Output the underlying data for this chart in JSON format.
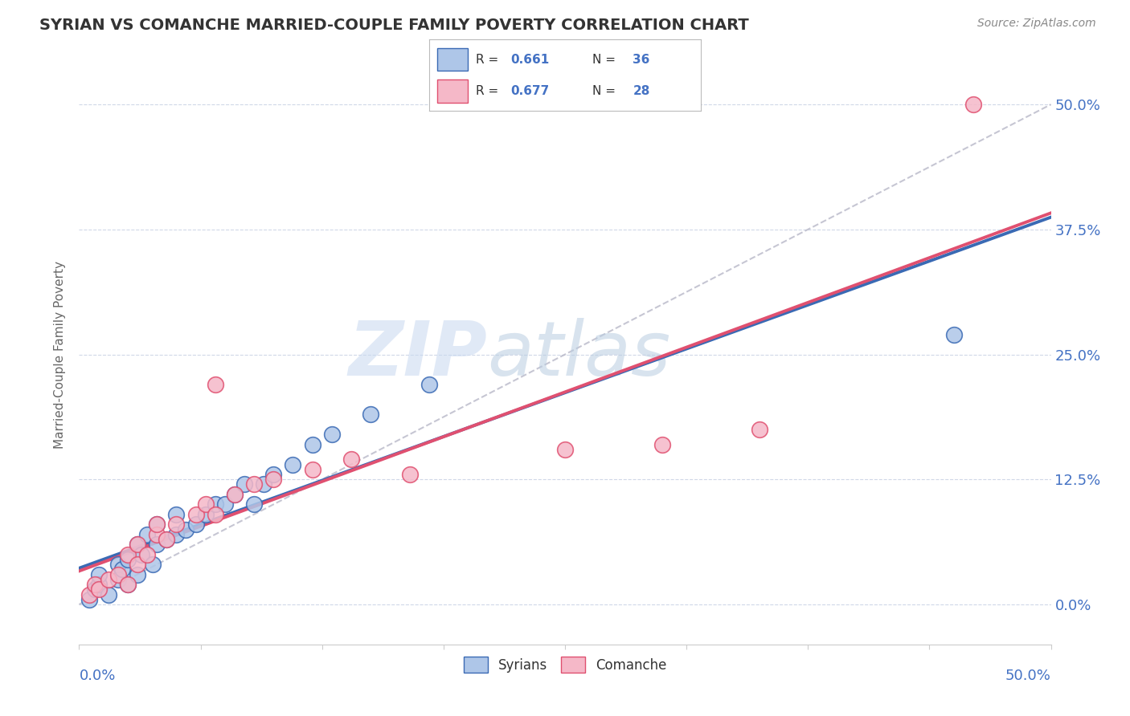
{
  "title": "SYRIAN VS COMANCHE MARRIED-COUPLE FAMILY POVERTY CORRELATION CHART",
  "source": "Source: ZipAtlas.com",
  "ylabel": "Married-Couple Family Poverty",
  "ytick_values": [
    0.0,
    0.125,
    0.25,
    0.375,
    0.5
  ],
  "xmin": 0.0,
  "xmax": 0.5,
  "ymin": -0.04,
  "ymax": 0.54,
  "legend_r1": "0.661",
  "legend_n1": "36",
  "legend_r2": "0.677",
  "legend_n2": "28",
  "legend_label1": "Syrians",
  "legend_label2": "Comanche",
  "syrian_color": "#aec6e8",
  "comanche_color": "#f5b8c8",
  "syrian_line_color": "#3a6ab4",
  "comanche_line_color": "#e05070",
  "ref_line_color": "#b8b8c8",
  "axis_label_color": "#4472c4",
  "r_label_color": "#333333",
  "r_value_color": "#4472c4",
  "background_color": "#ffffff",
  "grid_color": "#d0d8e8",
  "title_color": "#333333",
  "source_color": "#888888",
  "figsize": [
    14.06,
    8.92
  ],
  "dpi": 100,
  "syrian_scatter_x": [
    0.005,
    0.008,
    0.01,
    0.01,
    0.015,
    0.02,
    0.02,
    0.022,
    0.025,
    0.025,
    0.03,
    0.03,
    0.032,
    0.035,
    0.038,
    0.04,
    0.04,
    0.045,
    0.05,
    0.05,
    0.055,
    0.06,
    0.065,
    0.07,
    0.075,
    0.08,
    0.085,
    0.09,
    0.095,
    0.1,
    0.11,
    0.12,
    0.13,
    0.15,
    0.18,
    0.45
  ],
  "syrian_scatter_y": [
    0.005,
    0.015,
    0.02,
    0.03,
    0.01,
    0.025,
    0.04,
    0.035,
    0.02,
    0.045,
    0.03,
    0.06,
    0.05,
    0.07,
    0.04,
    0.06,
    0.08,
    0.065,
    0.07,
    0.09,
    0.075,
    0.08,
    0.09,
    0.1,
    0.1,
    0.11,
    0.12,
    0.1,
    0.12,
    0.13,
    0.14,
    0.16,
    0.17,
    0.19,
    0.22,
    0.27
  ],
  "comanche_scatter_x": [
    0.005,
    0.008,
    0.01,
    0.015,
    0.02,
    0.025,
    0.025,
    0.03,
    0.03,
    0.035,
    0.04,
    0.04,
    0.045,
    0.05,
    0.06,
    0.065,
    0.07,
    0.08,
    0.09,
    0.1,
    0.12,
    0.14,
    0.17,
    0.25,
    0.3,
    0.35,
    0.46,
    0.07
  ],
  "comanche_scatter_y": [
    0.01,
    0.02,
    0.015,
    0.025,
    0.03,
    0.02,
    0.05,
    0.04,
    0.06,
    0.05,
    0.07,
    0.08,
    0.065,
    0.08,
    0.09,
    0.1,
    0.09,
    0.11,
    0.12,
    0.125,
    0.135,
    0.145,
    0.13,
    0.155,
    0.16,
    0.175,
    0.5,
    0.22
  ]
}
